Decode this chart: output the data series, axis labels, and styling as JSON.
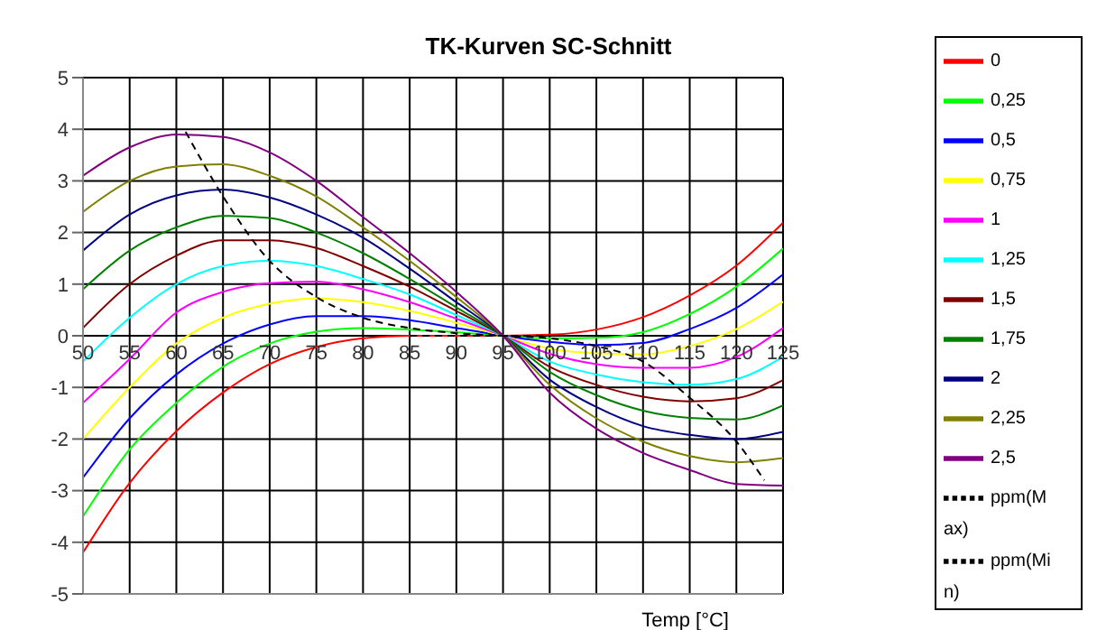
{
  "chart_data": {
    "type": "line",
    "title": "TK-Kurven SC-Schnitt",
    "xlabel": "Temp [°C]",
    "x": [
      50,
      55,
      60,
      65,
      70,
      75,
      80,
      85,
      90,
      95,
      100,
      105,
      110,
      115,
      120,
      125
    ],
    "xlim": [
      50,
      125
    ],
    "xticks": [
      50,
      55,
      60,
      65,
      70,
      75,
      80,
      85,
      90,
      95,
      100,
      105,
      110,
      115,
      120,
      125
    ],
    "ylim": [
      -5,
      5
    ],
    "yticks": [
      -5,
      -4,
      -3,
      -2,
      -1,
      0,
      1,
      2,
      3,
      4,
      5
    ],
    "grid": true,
    "legend": "right",
    "marker": "none",
    "line_style": "solid",
    "series": [
      {
        "name": "0",
        "color": "#ff0000",
        "values": [
          -4.2,
          -2.85,
          -1.85,
          -1.1,
          -0.55,
          -0.22,
          -0.05,
          0,
          0,
          0,
          0.02,
          0.12,
          0.36,
          0.78,
          1.36,
          2.19
        ]
      },
      {
        "name": "0,25",
        "color": "#00ff00",
        "values": [
          -3.5,
          -2.2,
          -1.3,
          -0.6,
          -0.15,
          0.08,
          0.15,
          0.12,
          0.07,
          0,
          -0.05,
          -0.04,
          0.07,
          0.42,
          0.95,
          1.69
        ]
      },
      {
        "name": "0,5",
        "color": "#0000ff",
        "values": [
          -2.75,
          -1.6,
          -0.75,
          -0.15,
          0.22,
          0.38,
          0.38,
          0.3,
          0.15,
          0,
          -0.12,
          -0.18,
          -0.14,
          0.13,
          0.54,
          1.19
        ]
      },
      {
        "name": "0,75",
        "color": "#ffff00",
        "values": [
          -2,
          -1,
          -0.15,
          0.35,
          0.62,
          0.72,
          0.65,
          0.48,
          0.25,
          0,
          -0.25,
          -0.34,
          -0.36,
          -0.2,
          0.13,
          0.66
        ]
      },
      {
        "name": "1",
        "color": "#ff00ff",
        "values": [
          -1.3,
          -0.45,
          0.45,
          0.85,
          1.02,
          1.05,
          0.9,
          0.65,
          0.33,
          0,
          -0.35,
          -0.55,
          -0.62,
          -0.62,
          -0.41,
          0.15
        ]
      },
      {
        "name": "1,25",
        "color": "#00ffff",
        "values": [
          -0.5,
          0.35,
          1,
          1.35,
          1.45,
          1.35,
          1.1,
          0.8,
          0.4,
          0,
          -0.5,
          -0.75,
          -0.9,
          -0.95,
          -0.84,
          -0.41
        ]
      },
      {
        "name": "1,5",
        "color": "#800000",
        "values": [
          0.15,
          1,
          1.55,
          1.85,
          1.85,
          1.7,
          1.35,
          0.95,
          0.48,
          0,
          -0.6,
          -0.95,
          -1.18,
          -1.27,
          -1.21,
          -0.86
        ]
      },
      {
        "name": "1,75",
        "color": "#008000",
        "values": [
          0.9,
          1.65,
          2.1,
          2.32,
          2.28,
          2,
          1.6,
          1.1,
          0.55,
          0,
          -0.7,
          -1.15,
          -1.45,
          -1.59,
          -1.62,
          -1.35
        ]
      },
      {
        "name": "2",
        "color": "#000080",
        "values": [
          1.65,
          2.35,
          2.72,
          2.83,
          2.68,
          2.35,
          1.9,
          1.3,
          0.65,
          0,
          -0.85,
          -1.38,
          -1.75,
          -1.92,
          -2,
          -1.86
        ]
      },
      {
        "name": "2,25",
        "color": "#808000",
        "values": [
          2.4,
          3,
          3.28,
          3.32,
          3.1,
          2.7,
          2.1,
          1.45,
          0.75,
          0,
          -0.95,
          -1.6,
          -2.05,
          -2.33,
          -2.45,
          -2.37
        ]
      },
      {
        "name": "2,5",
        "color": "#800080",
        "values": [
          3.1,
          3.65,
          3.9,
          3.85,
          3.55,
          3,
          2.3,
          1.6,
          0.85,
          0,
          -1.1,
          -1.8,
          -2.27,
          -2.6,
          -2.87,
          -2.9
        ]
      },
      {
        "name": "ppm(Max)",
        "color": "#000000",
        "line_style": "dashed",
        "x": [
          61,
          65,
          70,
          75,
          80,
          85,
          90,
          95,
          100,
          105,
          110,
          115,
          120,
          123
        ],
        "values": [
          3.95,
          2.7,
          1.45,
          0.75,
          0.35,
          0.15,
          0.05,
          0,
          -0.05,
          -0.2,
          -0.5,
          -1.2,
          -2.05,
          -2.8
        ]
      },
      {
        "name": "ppm(Min)",
        "color": "#000000",
        "line_style": "dashed",
        "x": [
          85,
          90,
          95,
          100
        ],
        "values": [
          0,
          0,
          0,
          0
        ]
      }
    ]
  }
}
